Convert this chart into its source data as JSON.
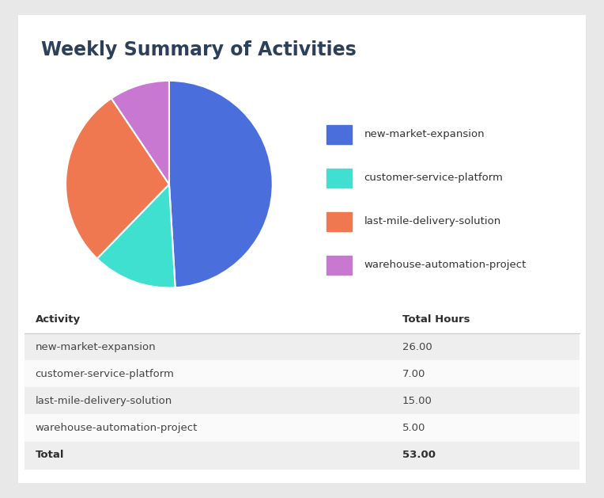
{
  "title": "Weekly Summary of Activities",
  "activities": [
    "new-market-expansion",
    "customer-service-platform",
    "last-mile-delivery-solution",
    "warehouse-automation-project"
  ],
  "hours": [
    26.0,
    7.0,
    15.0,
    5.0
  ],
  "total": 53.0,
  "colors": [
    "#4a6fdc",
    "#40e0d0",
    "#f07850",
    "#c878d0"
  ],
  "background_color": "#e8e8e8",
  "card_color": "#ffffff",
  "title_color": "#2d4059",
  "table_header_color": "#2d2d2d",
  "table_row_colors_odd": "#eeeeee",
  "table_row_colors_even": "#fafafa",
  "title_fontsize": 17,
  "legend_fontsize": 9.5,
  "table_fontsize": 9.5
}
